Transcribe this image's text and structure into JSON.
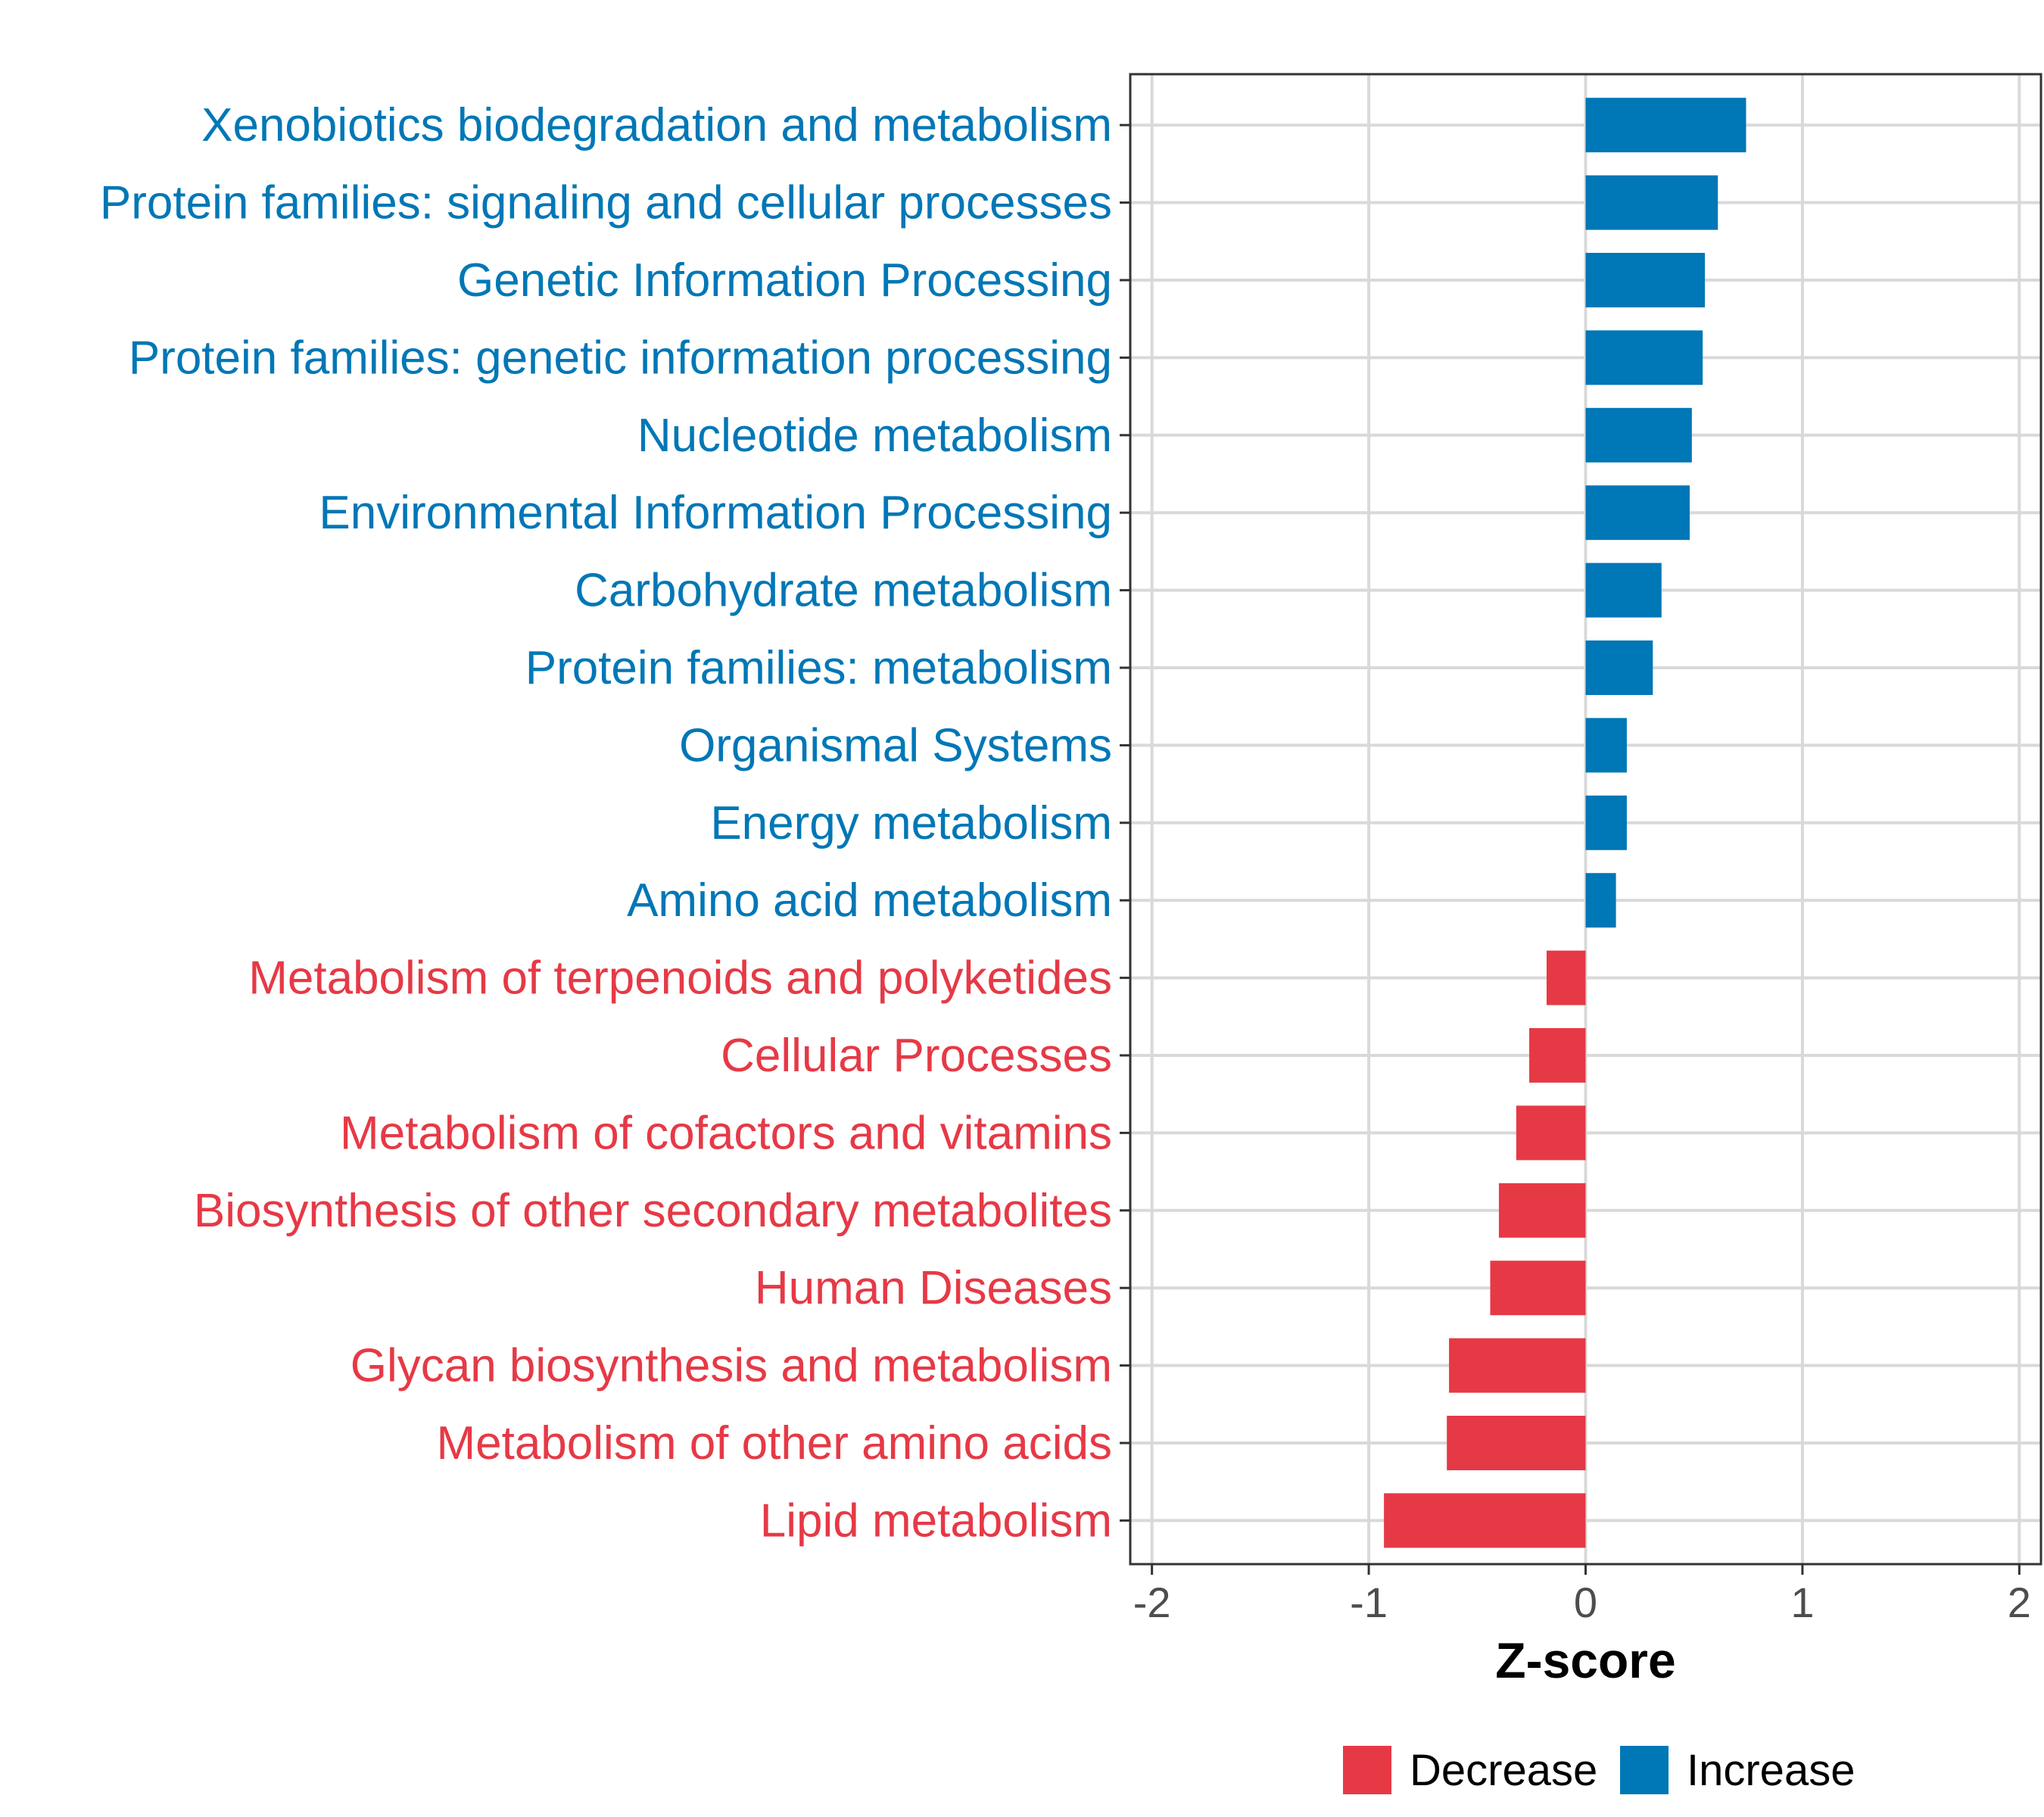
{
  "chart_data": {
    "type": "bar",
    "orientation": "horizontal",
    "xlabel": "Z-score",
    "xlim": [
      -2.1,
      2.1
    ],
    "x_ticks": [
      -2,
      -1,
      0,
      1,
      2
    ],
    "x_tick_labels": [
      "-2",
      "-1",
      "0",
      "1",
      "2"
    ],
    "grid": true,
    "colors": {
      "Increase": "#0077b6",
      "Decrease": "#e63946"
    },
    "legend": {
      "position": "bottom",
      "items": [
        {
          "label": "Decrease",
          "color": "#e63946"
        },
        {
          "label": "Increase",
          "color": "#0077b6"
        }
      ]
    },
    "categories": [
      "Xenobiotics biodegradation and metabolism",
      "Protein families: signaling and cellular processes",
      "Genetic Information Processing",
      "Protein families: genetic information processing",
      "Nucleotide metabolism",
      "Environmental Information Processing",
      "Carbohydrate metabolism",
      "Protein families: metabolism",
      "Organismal Systems",
      "Energy metabolism",
      "Amino acid metabolism",
      "Metabolism of terpenoids and polyketides",
      "Cellular Processes",
      "Metabolism of cofactors and vitamins",
      "Biosynthesis of other secondary metabolites",
      "Human Diseases",
      "Glycan biosynthesis and metabolism",
      "Metabolism of other amino acids",
      "Lipid metabolism"
    ],
    "values": [
      0.74,
      0.61,
      0.55,
      0.54,
      0.49,
      0.48,
      0.35,
      0.31,
      0.19,
      0.19,
      0.14,
      -0.18,
      -0.26,
      -0.32,
      -0.4,
      -0.44,
      -0.63,
      -0.64,
      -0.93
    ],
    "groups": [
      "Increase",
      "Increase",
      "Increase",
      "Increase",
      "Increase",
      "Increase",
      "Increase",
      "Increase",
      "Increase",
      "Increase",
      "Increase",
      "Decrease",
      "Decrease",
      "Decrease",
      "Decrease",
      "Decrease",
      "Decrease",
      "Decrease",
      "Decrease"
    ]
  }
}
